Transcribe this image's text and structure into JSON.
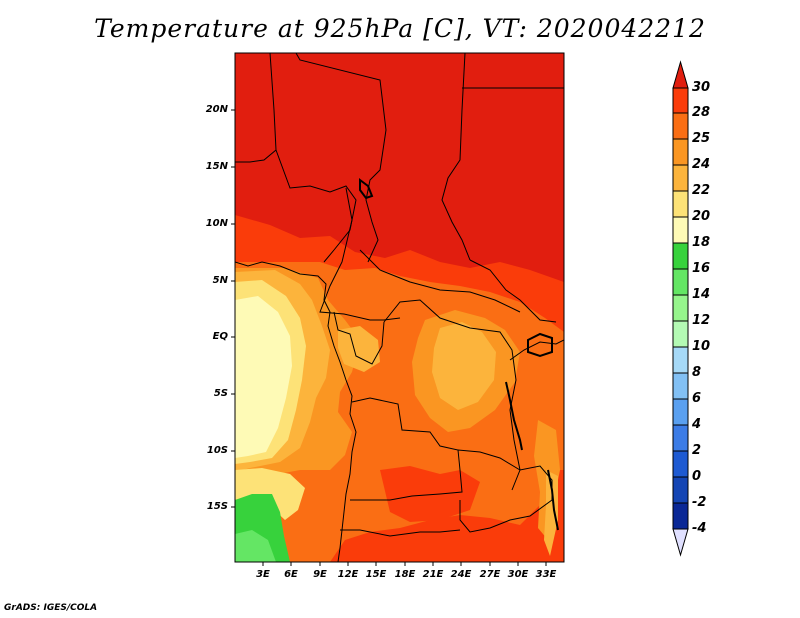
{
  "title": "Temperature at 925hPa [C], VT: 2020042212",
  "credit": "GrADS: IGES/COLA",
  "map": {
    "variable": "Temperature at 925hPa",
    "units": "C",
    "valid_time": "2020042212",
    "lat_ticks": [
      "20N",
      "15N",
      "10N",
      "5N",
      "EQ",
      "5S",
      "10S",
      "15S"
    ],
    "lon_ticks": [
      "3E",
      "6E",
      "9E",
      "12E",
      "15E",
      "18E",
      "21E",
      "24E",
      "27E",
      "30E",
      "33E"
    ]
  },
  "colorbar": {
    "labels": [
      "30",
      "28",
      "25",
      "24",
      "22",
      "20",
      "18",
      "16",
      "14",
      "12",
      "10",
      "8",
      "6",
      "4",
      "2",
      "0",
      "-2",
      "-4"
    ],
    "colors": [
      "#e11e0f",
      "#fa3c0a",
      "#fa6e14",
      "#fa9622",
      "#fcb43c",
      "#fde277",
      "#fefab6",
      "#37d23c",
      "#64e664",
      "#96f58c",
      "#b4fab4",
      "#a6d9f7",
      "#82c0f4",
      "#5aa0f0",
      "#3c7ce6",
      "#1e5ad2",
      "#1445b4",
      "#0a2896",
      "#000a6e",
      "#e0e0ff"
    ]
  },
  "palette": {
    "red": "#e11e0f",
    "orange_red": "#fa3c0a",
    "orange": "#fa6e14",
    "light_orange": "#fa9622",
    "gold": "#fcb43c",
    "pale_yellow": "#fde277",
    "cream": "#fefab6",
    "green": "#37d23c",
    "light_green": "#64e664"
  }
}
